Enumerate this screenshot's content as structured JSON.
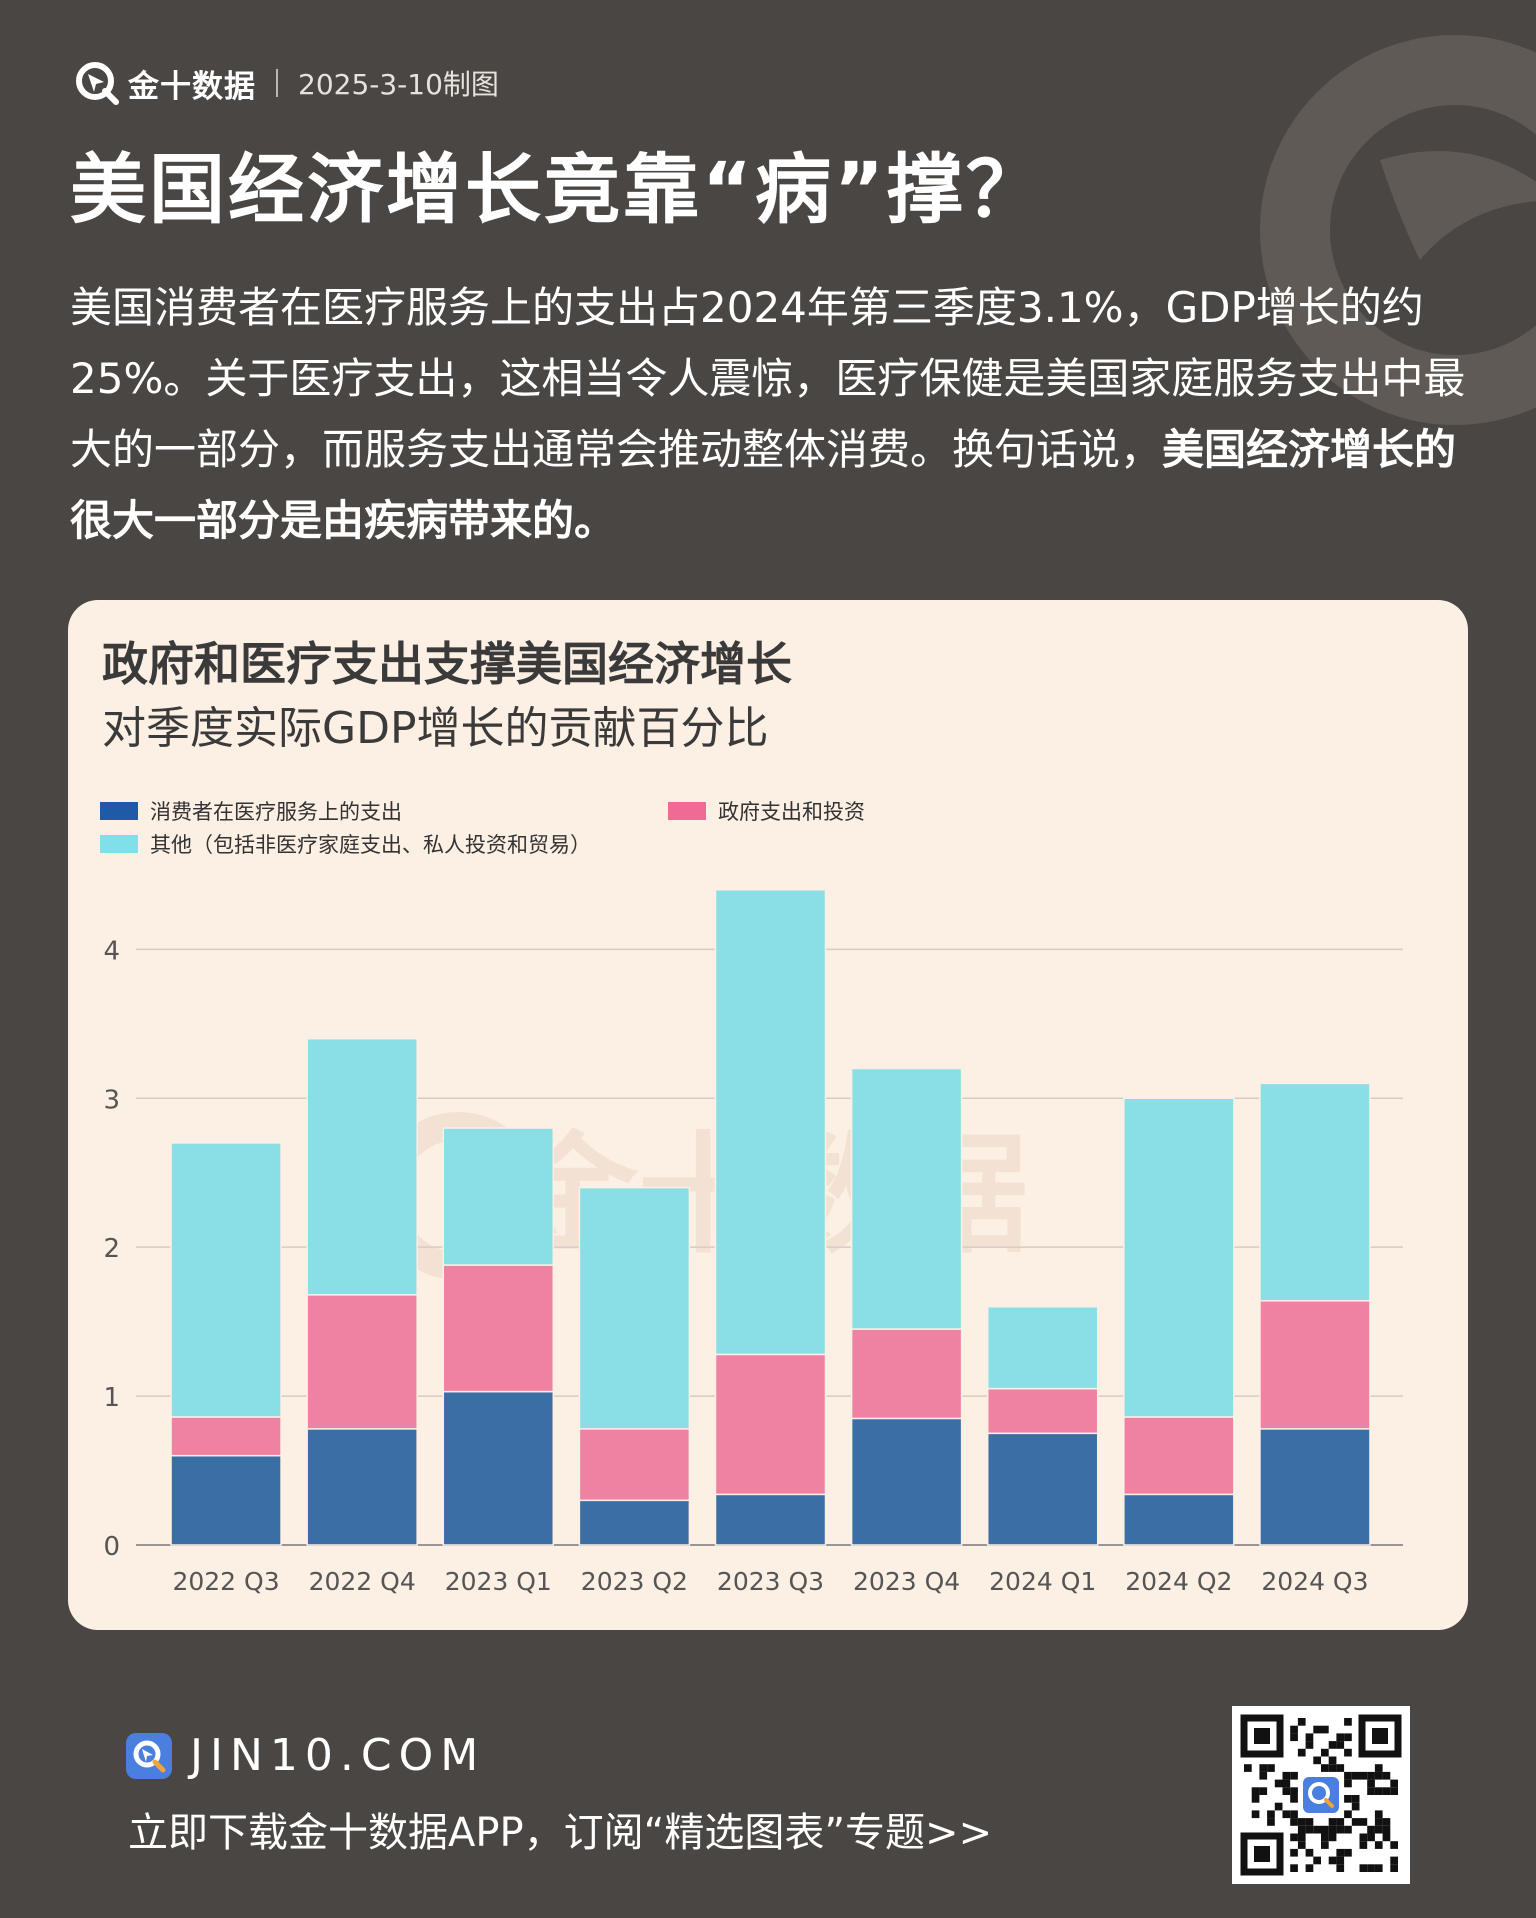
{
  "header": {
    "brand_name": "金十数据",
    "date": "2025-3-10制图",
    "logo_icon": "jin10-logo-icon"
  },
  "title": "美国经济增长竟靠“病”撑？",
  "intro": {
    "text": "美国消费者在医疗服务上的支出占2024年第三季度3.1%，GDP增长的约25%。关于医疗支出，这相当令人震惊，医疗保健是美国家庭服务支出中最大的一部分，而服务支出通常会推动整体消费。换句话说，",
    "bold_text": "美国经济增长的很大一部分是由疾病带来的。"
  },
  "chart_data": {
    "type": "bar",
    "stacked": true,
    "title": "政府和医疗支出支撑美国经济增长",
    "subtitle": "对季度实际GDP增长的贡献百分比",
    "categories": [
      "2022 Q3",
      "2022 Q4",
      "2023 Q1",
      "2023 Q2",
      "2023 Q3",
      "2023 Q4",
      "2024 Q1",
      "2024 Q2",
      "2024 Q3"
    ],
    "series": [
      {
        "name": "消费者在医疗服务上的支出",
        "color": "#3b6ea5",
        "values": [
          0.6,
          0.78,
          1.03,
          0.3,
          0.34,
          0.85,
          0.75,
          0.34,
          0.78
        ]
      },
      {
        "name": "政府支出和投资",
        "color": "#ef82a2",
        "values": [
          0.26,
          0.9,
          0.85,
          0.48,
          0.94,
          0.6,
          0.3,
          0.52,
          0.86
        ]
      },
      {
        "name": "其他（包括非医疗家庭支出、私人投资和贸易）",
        "color": "#8adfe7",
        "values": [
          1.84,
          1.72,
          0.92,
          1.62,
          3.12,
          1.75,
          0.55,
          2.14,
          1.46
        ]
      }
    ],
    "totals": [
      2.7,
      3.4,
      2.8,
      2.4,
      4.4,
      3.2,
      1.6,
      3.0,
      3.1
    ],
    "yticks": [
      0,
      1,
      2,
      3,
      4
    ],
    "ylim": [
      0,
      4.6
    ],
    "xlabel": "",
    "ylabel": "",
    "grid": true,
    "legend_position": "top-left"
  },
  "watermark": {
    "text": "金十数据"
  },
  "footer": {
    "site": "JIN10.COM",
    "cta": "立即下载金十数据APP，订阅“精选图表”专题>>"
  },
  "colors": {
    "background": "#4a4644",
    "card": "#fcefe3",
    "brand_blue": "#4a7fe0"
  }
}
